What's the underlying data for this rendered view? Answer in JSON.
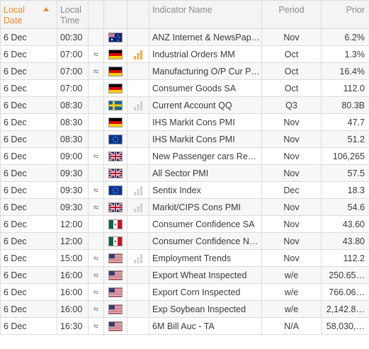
{
  "header": {
    "local_date": "Local Date",
    "local_time": "Local Time",
    "indicator_name": "Indicator Name",
    "period": "Period",
    "prior": "Prior"
  },
  "colors": {
    "accent": "#f28c28",
    "impact_low": "#d2d2d2",
    "impact_mid": "#f2a94a"
  },
  "rows": [
    {
      "date": "6 Dec",
      "time": "00:30",
      "rev": "",
      "flag": "au",
      "impact": "none",
      "indicator": "ANZ Internet & NewsPap…",
      "period": "Nov",
      "prior": "6.2%"
    },
    {
      "date": "6 Dec",
      "time": "07:00",
      "rev": "≈",
      "flag": "de",
      "impact": "orange",
      "indicator": "Industrial Orders MM",
      "period": "Oct",
      "prior": "1.3%"
    },
    {
      "date": "6 Dec",
      "time": "07:00",
      "rev": "≈",
      "flag": "de",
      "impact": "none",
      "indicator": "Manufacturing O/P Cur P…",
      "period": "Oct",
      "prior": "16.4%"
    },
    {
      "date": "6 Dec",
      "time": "07:00",
      "rev": "",
      "flag": "de",
      "impact": "none",
      "indicator": "Consumer Goods SA",
      "period": "Oct",
      "prior": "112.0"
    },
    {
      "date": "6 Dec",
      "time": "08:30",
      "rev": "",
      "flag": "se",
      "impact": "grey",
      "indicator": "Current Account QQ",
      "period": "Q3",
      "prior": "80.3B"
    },
    {
      "date": "6 Dec",
      "time": "08:30",
      "rev": "",
      "flag": "de",
      "impact": "none",
      "indicator": "IHS Markit Cons PMI",
      "period": "Nov",
      "prior": "47.7"
    },
    {
      "date": "6 Dec",
      "time": "08:30",
      "rev": "",
      "flag": "eu",
      "impact": "none",
      "indicator": "IHS Markit Cons PMI",
      "period": "Nov",
      "prior": "51.2"
    },
    {
      "date": "6 Dec",
      "time": "09:00",
      "rev": "≈",
      "flag": "gb",
      "impact": "none",
      "indicator": "New Passenger cars Reg…",
      "period": "Nov",
      "prior": "106,265"
    },
    {
      "date": "6 Dec",
      "time": "09:30",
      "rev": "",
      "flag": "gb",
      "impact": "none",
      "indicator": "All Sector PMI",
      "period": "Nov",
      "prior": "57.5"
    },
    {
      "date": "6 Dec",
      "time": "09:30",
      "rev": "≈",
      "flag": "eu",
      "impact": "grey",
      "indicator": "Sentix Index",
      "period": "Dec",
      "prior": "18.3"
    },
    {
      "date": "6 Dec",
      "time": "09:30",
      "rev": "≈",
      "flag": "gb",
      "impact": "grey",
      "indicator": "Markit/CIPS Cons PMI",
      "period": "Nov",
      "prior": "54.6"
    },
    {
      "date": "6 Dec",
      "time": "12:00",
      "rev": "",
      "flag": "mx",
      "impact": "none",
      "indicator": "Consumer Confidence SA",
      "period": "Nov",
      "prior": "43.60"
    },
    {
      "date": "6 Dec",
      "time": "12:00",
      "rev": "",
      "flag": "mx",
      "impact": "none",
      "indicator": "Consumer Confidence N…",
      "period": "Nov",
      "prior": "43.80"
    },
    {
      "date": "6 Dec",
      "time": "15:00",
      "rev": "≈",
      "flag": "us",
      "impact": "grey",
      "indicator": "Employment Trends",
      "period": "Nov",
      "prior": "112.2"
    },
    {
      "date": "6 Dec",
      "time": "16:00",
      "rev": "≈",
      "flag": "us",
      "impact": "none",
      "indicator": "Export Wheat Inspected",
      "period": "w/e",
      "prior": "250.65…"
    },
    {
      "date": "6 Dec",
      "time": "16:00",
      "rev": "≈",
      "flag": "us",
      "impact": "none",
      "indicator": "Export Corn Inspected",
      "period": "w/e",
      "prior": "766.06…"
    },
    {
      "date": "6 Dec",
      "time": "16:00",
      "rev": "≈",
      "flag": "us",
      "impact": "none",
      "indicator": "Exp Soybean Inspected",
      "period": "w/e",
      "prior": "2,142.8…"
    },
    {
      "date": "6 Dec",
      "time": "16:30",
      "rev": "≈",
      "flag": "us",
      "impact": "none",
      "indicator": "6M Bill Auc - TA",
      "period": "N/A",
      "prior": "58,030,…"
    }
  ]
}
